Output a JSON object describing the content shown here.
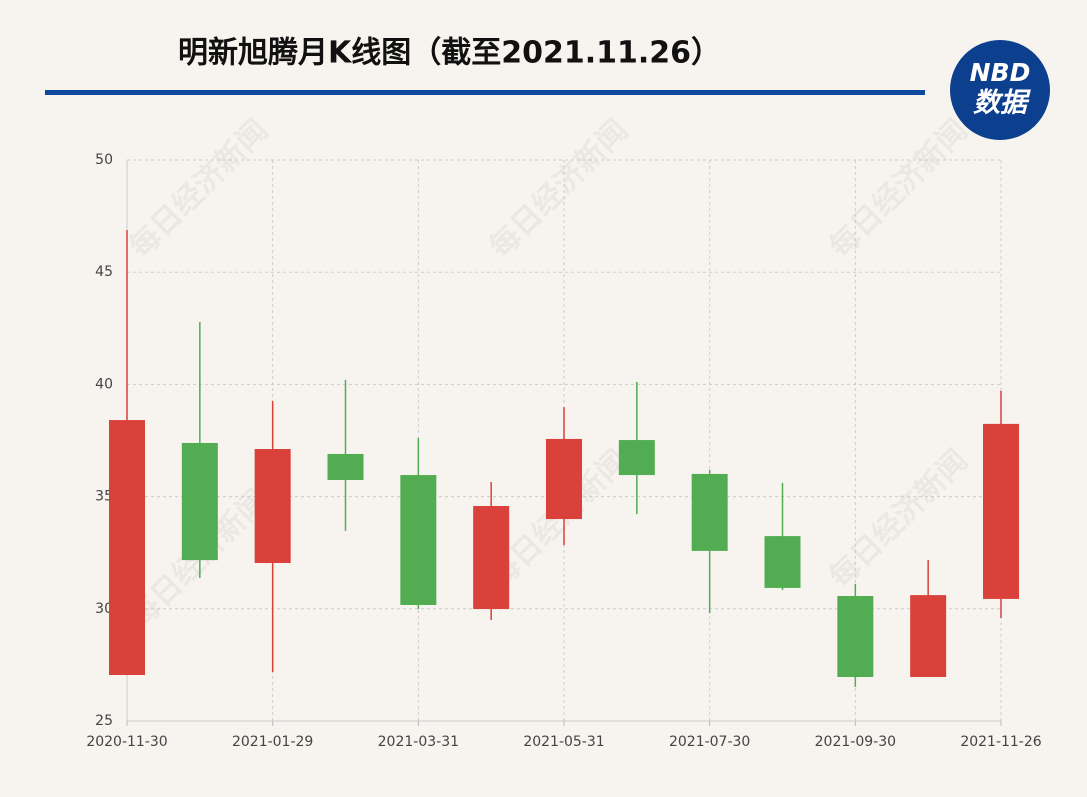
{
  "chart_data": {
    "type": "candlestick",
    "title": "明新旭腾月K线图（截至2021.11.26）",
    "logo": {
      "top": "NBD",
      "bottom": "数据"
    },
    "watermark": "每日经济新闻",
    "categories": [
      "2020-11-30",
      null,
      "2021-01-29",
      null,
      "2021-03-31",
      null,
      "2021-05-31",
      null,
      "2021-07-30",
      null,
      "2021-09-30",
      null,
      "2021-11-26"
    ],
    "open": [
      27.05,
      37.39,
      32.04,
      36.9,
      35.96,
      29.99,
      34.0,
      37.52,
      36.01,
      33.24,
      30.57,
      26.96,
      30.44
    ],
    "high": [
      46.88,
      42.78,
      39.26,
      40.2,
      37.61,
      35.65,
      38.99,
      40.11,
      36.19,
      35.61,
      31.11,
      32.17,
      39.71
    ],
    "low": [
      27.05,
      31.37,
      27.18,
      33.47,
      29.99,
      29.5,
      32.84,
      34.22,
      29.81,
      30.84,
      26.52,
      26.96,
      29.59
    ],
    "close": [
      38.41,
      32.17,
      37.12,
      35.74,
      30.17,
      34.58,
      37.57,
      35.96,
      32.58,
      30.93,
      26.96,
      30.61,
      38.24
    ],
    "up_color": "#d9413a",
    "down_color": "#52ad52",
    "ylim": [
      25,
      50
    ],
    "yticks": [
      25,
      30,
      35,
      40,
      45,
      50
    ],
    "grid": true
  }
}
